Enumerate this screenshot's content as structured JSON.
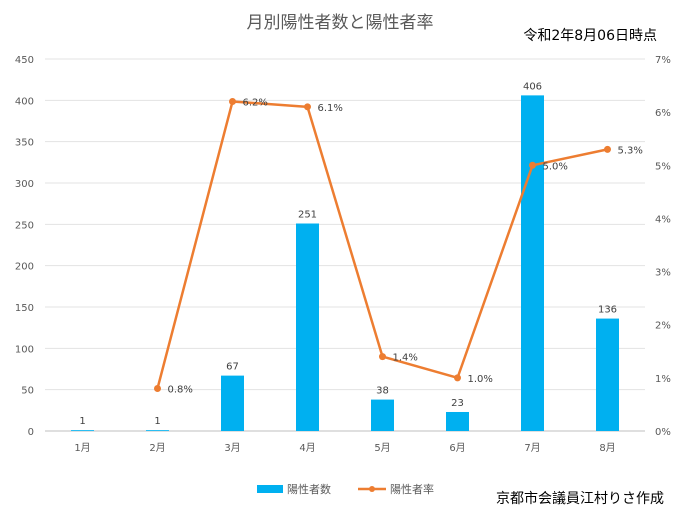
{
  "chart_data": {
    "type": "bar+line",
    "title": "月別陽性者数と陽性者率",
    "as_of": "令和2年8月06日時点",
    "credit": "京都市会議員江村りさ作成",
    "categories": [
      "1月",
      "2月",
      "3月",
      "4月",
      "5月",
      "6月",
      "7月",
      "8月"
    ],
    "series": [
      {
        "name": "陽性者数",
        "type": "bar",
        "axis": "left",
        "color": "#00B0F0",
        "values": [
          1,
          1,
          67,
          251,
          38,
          23,
          406,
          136
        ],
        "labels": [
          "1",
          "1",
          "67",
          "251",
          "38",
          "23",
          "406",
          "136"
        ]
      },
      {
        "name": "陽性者率",
        "type": "line",
        "axis": "right",
        "color": "#ED7D31",
        "values": [
          null,
          0.8,
          6.2,
          6.1,
          1.4,
          1.0,
          5.0,
          5.3
        ],
        "labels": [
          "",
          "0.8%",
          "6.2%",
          "6.1%",
          "1.4%",
          "1.0%",
          "5.0%",
          "5.3%"
        ]
      }
    ],
    "y_left": {
      "range": [
        0,
        450
      ],
      "ticks": [
        "0",
        "50",
        "100",
        "150",
        "200",
        "250",
        "300",
        "350",
        "400",
        "450"
      ]
    },
    "y_right": {
      "range": [
        0,
        7
      ],
      "ticks": [
        "0%",
        "1%",
        "2%",
        "3%",
        "4%",
        "5%",
        "6%",
        "7%"
      ]
    },
    "grid": true,
    "legend_position": "bottom"
  }
}
